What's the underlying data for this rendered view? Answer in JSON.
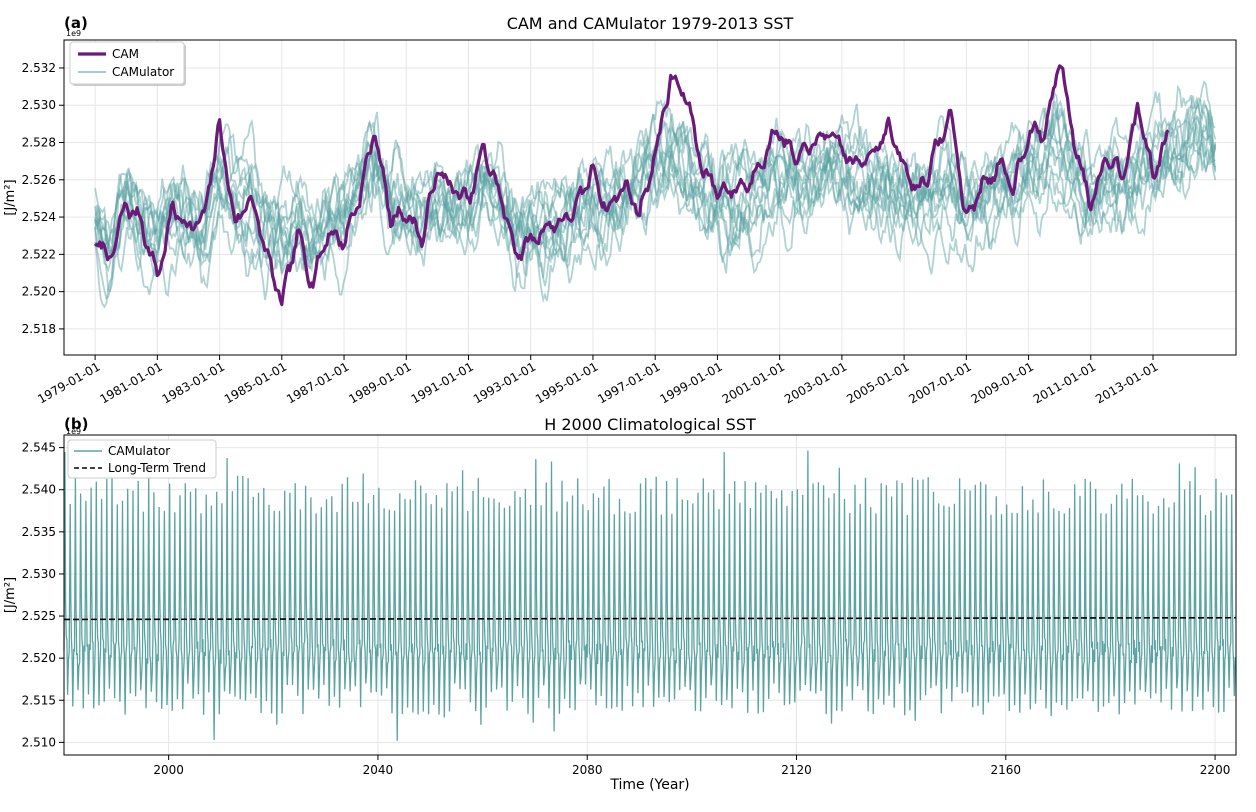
{
  "chart_data": [
    {
      "panel_label": "(a)",
      "type": "line",
      "title": "CAM and CAMulator 1979-2013 SST",
      "xlabel": "",
      "ylabel": "[J/m²]",
      "offset_label": "1e9",
      "xlim": [
        "1978-01-01",
        "2015-09-01"
      ],
      "ylim": [
        2.5166,
        2.5335
      ],
      "yticks": [
        "2.518",
        "2.520",
        "2.522",
        "2.524",
        "2.526",
        "2.528",
        "2.530",
        "2.532"
      ],
      "xticks": [
        "1979-01-01",
        "1981-01-01",
        "1983-01-01",
        "1985-01-01",
        "1987-01-01",
        "1989-01-01",
        "1991-01-01",
        "1993-01-01",
        "1995-01-01",
        "1997-01-01",
        "1999-01-01",
        "2001-01-01",
        "2003-01-01",
        "2005-01-01",
        "2007-01-01",
        "2009-01-01",
        "2011-01-01",
        "2013-01-01"
      ],
      "grid": true,
      "legend_position": "top-left",
      "series": [
        {
          "name": "CAM",
          "color": "#6b1a78",
          "x": [
            1979.0,
            1979.5,
            1980.0,
            1980.5,
            1981.0,
            1981.5,
            1982.0,
            1982.5,
            1983.0,
            1983.5,
            1984.0,
            1984.5,
            1985.0,
            1985.5,
            1986.0,
            1986.5,
            1987.0,
            1987.5,
            1988.0,
            1988.5,
            1989.0,
            1989.5,
            1990.0,
            1990.5,
            1991.0,
            1991.5,
            1992.0,
            1992.5,
            1993.0,
            1993.5,
            1994.0,
            1994.5,
            1995.0,
            1995.5,
            1996.0,
            1996.5,
            1997.0,
            1997.5,
            1998.0,
            1998.5,
            1999.0,
            1999.5,
            2000.0,
            2000.5,
            2001.0,
            2001.5,
            2002.0,
            2002.5,
            2003.0,
            2003.5,
            2004.0,
            2004.5,
            2005.0,
            2005.5,
            2006.0,
            2006.5,
            2007.0,
            2007.5,
            2008.0,
            2008.5,
            2009.0,
            2009.5,
            2010.0,
            2010.5,
            2011.0,
            2011.5,
            2012.0,
            2012.5,
            2013.0,
            2013.5
          ],
          "values": [
            2.5228,
            2.5217,
            2.5246,
            2.5238,
            2.5208,
            2.5244,
            2.5236,
            2.5238,
            2.5289,
            2.5236,
            2.5252,
            2.522,
            2.5192,
            2.5229,
            2.5207,
            2.5233,
            2.5227,
            2.5252,
            2.5287,
            2.5238,
            2.5244,
            2.5228,
            2.5265,
            2.5255,
            2.5247,
            2.5276,
            2.5252,
            2.5222,
            2.5226,
            2.5236,
            2.5238,
            2.5245,
            2.5265,
            2.5244,
            2.5258,
            2.5243,
            2.5274,
            2.5314,
            2.5304,
            2.5268,
            2.5254,
            2.5256,
            2.5258,
            2.5276,
            2.5288,
            2.5268,
            2.5278,
            2.5284,
            2.5276,
            2.5266,
            2.5278,
            2.5289,
            2.5264,
            2.5255,
            2.5274,
            2.5296,
            2.5238,
            2.5258,
            2.5266,
            2.5256,
            2.5288,
            2.5283,
            2.5325,
            2.5278,
            2.5248,
            2.5276,
            2.5264,
            2.53,
            2.5262,
            2.5285
          ]
        },
        {
          "name": "CAMulator",
          "color": "#5ba3a3",
          "x": [
            1979.0,
            1979.5,
            1980.0,
            1980.5,
            1981.0,
            1981.5,
            1982.0,
            1982.5,
            1983.0,
            1983.5,
            1984.0,
            1984.5,
            1985.0,
            1985.5,
            1986.0,
            1986.5,
            1987.0,
            1987.5,
            1988.0,
            1988.5,
            1989.0,
            1989.5,
            1990.0,
            1990.5,
            1991.0,
            1991.5,
            1992.0,
            1992.5,
            1993.0,
            1993.5,
            1994.0,
            1994.5,
            1995.0,
            1995.5,
            1996.0,
            1996.5,
            1997.0,
            1997.5,
            1998.0,
            1998.5,
            1999.0,
            1999.5,
            2000.0,
            2000.5,
            2001.0,
            2001.5,
            2002.0,
            2002.5,
            2003.0,
            2003.5,
            2004.0,
            2004.5,
            2005.0,
            2005.5,
            2006.0,
            2006.5,
            2007.0,
            2007.5,
            2008.0,
            2008.5,
            2009.0,
            2009.5,
            2010.0,
            2010.5,
            2011.0,
            2011.5,
            2012.0,
            2012.5,
            2013.0,
            2013.5,
            2014.0,
            2014.5,
            2015.0
          ],
          "values": [
            2.5232,
            2.5208,
            2.5236,
            2.5232,
            2.5222,
            2.5238,
            2.523,
            2.5222,
            2.5258,
            2.5244,
            2.524,
            2.5226,
            2.5214,
            2.5232,
            2.5226,
            2.5238,
            2.5236,
            2.5252,
            2.5262,
            2.524,
            2.5236,
            2.5234,
            2.5246,
            2.5242,
            2.5244,
            2.5256,
            2.5248,
            2.5228,
            2.523,
            2.5232,
            2.5234,
            2.5238,
            2.5246,
            2.5242,
            2.525,
            2.5252,
            2.526,
            2.5268,
            2.5264,
            2.5254,
            2.5248,
            2.5244,
            2.5246,
            2.5252,
            2.5258,
            2.5254,
            2.5256,
            2.5258,
            2.5256,
            2.525,
            2.5248,
            2.5254,
            2.5246,
            2.5244,
            2.525,
            2.5256,
            2.524,
            2.5246,
            2.525,
            2.5246,
            2.5256,
            2.5262,
            2.527,
            2.5258,
            2.5246,
            2.5256,
            2.5254,
            2.5264,
            2.5268,
            2.527,
            2.5274,
            2.5286,
            2.528
          ]
        }
      ]
    },
    {
      "panel_label": "(b)",
      "type": "line",
      "title": "H 2000 Climatological SST",
      "xlabel": "Time (Year)",
      "ylabel": "[J/m²]",
      "offset_label": "1e9",
      "xlim": [
        1980,
        2204
      ],
      "ylim": [
        2.5085,
        2.5465
      ],
      "yticks": [
        "2.510",
        "2.515",
        "2.520",
        "2.525",
        "2.530",
        "2.535",
        "2.540",
        "2.545"
      ],
      "xticks": [
        "2000",
        "2040",
        "2080",
        "2120",
        "2160",
        "2200"
      ],
      "grid": true,
      "legend_position": "top-left",
      "series": [
        {
          "name": "CAMulator",
          "color": "#5ba3a3",
          "annual_cycle": {
            "mean": 2.5248,
            "max_range": [
              2.537,
              2.5455
            ],
            "min_range": [
              2.51,
              2.517
            ]
          }
        },
        {
          "name": "Long-Term Trend",
          "color": "#000000",
          "x": [
            1980,
            2204
          ],
          "values": [
            2.5246,
            2.5248
          ]
        }
      ]
    }
  ]
}
